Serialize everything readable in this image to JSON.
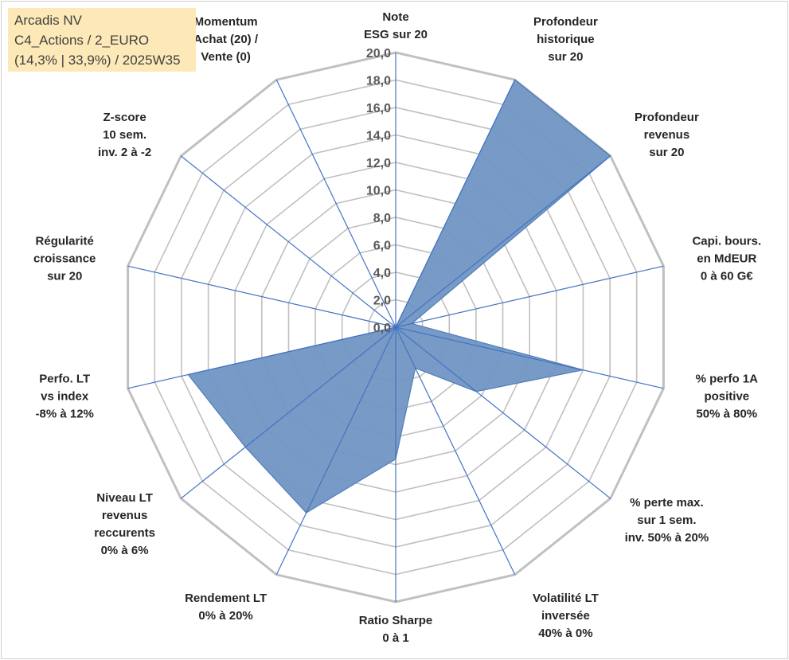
{
  "info": {
    "line1": "Arcadis NV",
    "line2": "C4_Actions / 2_EURO",
    "line3": "(14,3% | 33,9%) / 2025W35"
  },
  "colors": {
    "fill": "#7096c3",
    "stroke": "#4f7cb8",
    "spoke": "#4472c4",
    "grid": "#c0c0c0",
    "info_bg": "#fde9b8"
  },
  "chart_data": {
    "type": "radar",
    "title": "",
    "rmin": 0,
    "rmax": 20,
    "ticks": [
      "0,0",
      "2,0",
      "4,0",
      "6,0",
      "8,0",
      "10,0",
      "12,0",
      "14,0",
      "16,0",
      "18,0",
      "20,0"
    ],
    "grid": true,
    "categories": [
      [
        "Note",
        "ESG sur 20"
      ],
      [
        "Profondeur",
        "historique",
        "sur 20"
      ],
      [
        "Profondeur",
        "revenus",
        "sur 20"
      ],
      [
        "Capi. bours.",
        "en MdEUR",
        "0 à 60 G€"
      ],
      [
        "% perfo 1A",
        "positive",
        "50% à 80%"
      ],
      [
        "% perte max.",
        "sur 1 sem.",
        "inv. 50% à 20%"
      ],
      [
        "Volatilité LT",
        "inversée",
        "40% à 0%"
      ],
      [
        "Ratio Sharpe",
        "0 à 1"
      ],
      [
        "Rendement LT",
        "0% à 20%"
      ],
      [
        "Niveau LT",
        "revenus",
        "reccurents",
        "0% à 6%"
      ],
      [
        "Perfo. LT",
        "vs index",
        "-8% à 12%"
      ],
      [
        "Régularité",
        "croissance",
        "sur 20"
      ],
      [
        "Z-score",
        "10 sem.",
        "inv. 2 à -2"
      ],
      [
        "Momentum",
        "Achat (20) /",
        "Vente (0)"
      ]
    ],
    "values": [
      0,
      20,
      20,
      1.2,
      14.0,
      7.5,
      3.3,
      9.6,
      15.0,
      14.0,
      15.5,
      0,
      0,
      0
    ]
  }
}
